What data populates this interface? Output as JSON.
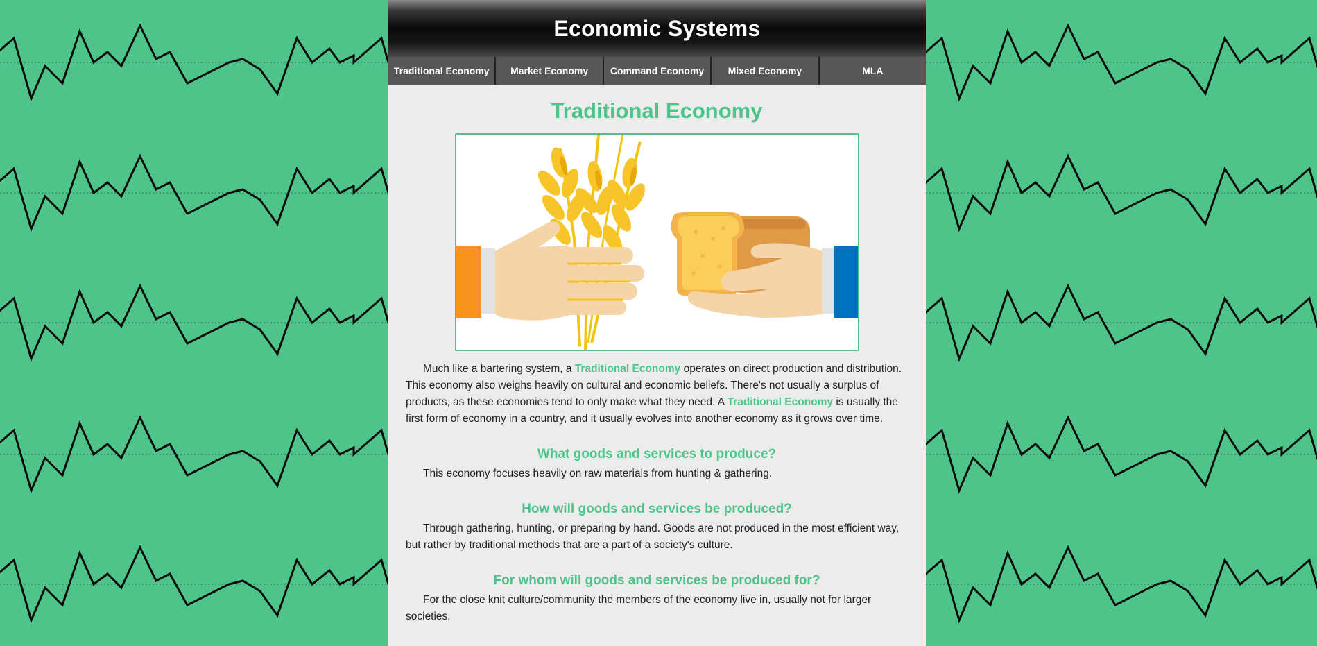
{
  "site": {
    "title": "Economic Systems"
  },
  "nav": {
    "items": [
      {
        "label": "Traditional Economy"
      },
      {
        "label": "Market Economy"
      },
      {
        "label": "Command Economy"
      },
      {
        "label": "Mixed Economy"
      },
      {
        "label": "MLA"
      }
    ]
  },
  "section": {
    "title": "Traditional Economy",
    "intro": {
      "p1": "Much like a bartering system, a ",
      "hl1": "Traditional Economy",
      "p2": " operates on direct production and distribution. This economy also weighs heavily on cultural and economic beliefs. There's not usually a surplus of products, as these economies tend to only make what they need. A ",
      "hl2": "Traditional Economy",
      "p3": " is usually the first form of economy in a country, and it usually evolves into another economy as it grows over time."
    },
    "questions": [
      {
        "heading": "What goods and services to produce?",
        "answer": "This economy focuses heavily on raw materials from hunting & gathering."
      },
      {
        "heading": "How will goods and services be produced?",
        "answer": "Through gathering, hunting, or preparing by hand. Goods are not produced in the most efficient way, but rather by traditional methods that are a part of a society's culture."
      },
      {
        "heading": "For whom will goods and services be produced for?",
        "answer": "For the close knit culture/community the members of the economy live in, usually not for larger societies."
      }
    ]
  },
  "colors": {
    "accent": "#4ec48a",
    "page_bg": "#ececec",
    "nav_bg": "#575757"
  }
}
